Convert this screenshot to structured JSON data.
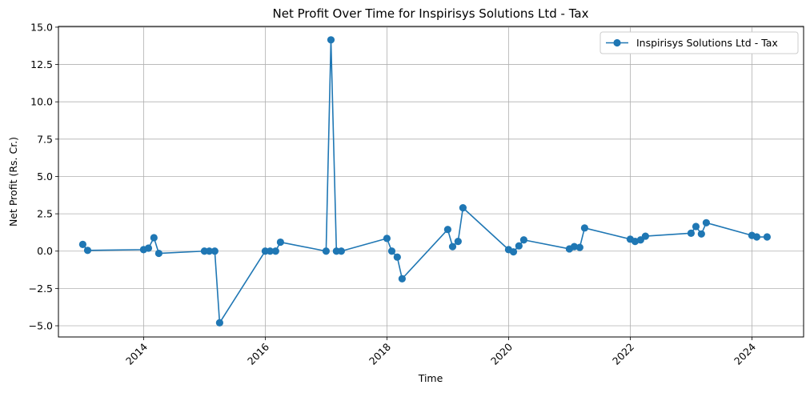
{
  "chart_data": {
    "type": "line",
    "title": "Net Profit Over Time for Inspirisys Solutions Ltd - Tax",
    "xlabel": "Time",
    "ylabel": "Net Profit (Rs. Cr.)",
    "xlim": [
      2012.6,
      2024.85
    ],
    "ylim": [
      -5.75,
      15.05
    ],
    "xticks": [
      2014,
      2016,
      2018,
      2020,
      2022,
      2024
    ],
    "xtick_labels": [
      "2014",
      "2016",
      "2018",
      "2020",
      "2022",
      "2024"
    ],
    "yticks": [
      -5.0,
      -2.5,
      0.0,
      2.5,
      5.0,
      7.5,
      10.0,
      12.5,
      15.0
    ],
    "ytick_labels": [
      "−5.0",
      "−2.5",
      "0.0",
      "2.5",
      "5.0",
      "7.5",
      "10.0",
      "12.5",
      "15.0"
    ],
    "grid": true,
    "legend_position": "top-right",
    "series": [
      {
        "name": "Inspirisys Solutions Ltd - Tax",
        "color": "#1f77b4",
        "marker": "circle",
        "points": [
          {
            "x": 2013.0,
            "y": 0.45
          },
          {
            "x": 2013.08,
            "y": 0.05
          },
          {
            "x": 2014.0,
            "y": 0.1
          },
          {
            "x": 2014.08,
            "y": 0.2
          },
          {
            "x": 2014.17,
            "y": 0.9
          },
          {
            "x": 2014.25,
            "y": -0.15
          },
          {
            "x": 2015.0,
            "y": 0.0
          },
          {
            "x": 2015.08,
            "y": 0.0
          },
          {
            "x": 2015.17,
            "y": 0.0
          },
          {
            "x": 2015.25,
            "y": -4.8
          },
          {
            "x": 2016.0,
            "y": 0.0
          },
          {
            "x": 2016.08,
            "y": 0.0
          },
          {
            "x": 2016.17,
            "y": 0.0
          },
          {
            "x": 2016.25,
            "y": 0.6
          },
          {
            "x": 2017.0,
            "y": 0.0
          },
          {
            "x": 2017.08,
            "y": 14.15
          },
          {
            "x": 2017.17,
            "y": 0.0
          },
          {
            "x": 2017.25,
            "y": 0.0
          },
          {
            "x": 2018.0,
            "y": 0.85
          },
          {
            "x": 2018.08,
            "y": 0.0
          },
          {
            "x": 2018.17,
            "y": -0.4
          },
          {
            "x": 2018.25,
            "y": -1.85
          },
          {
            "x": 2019.0,
            "y": 1.45
          },
          {
            "x": 2019.08,
            "y": 0.3
          },
          {
            "x": 2019.17,
            "y": 0.65
          },
          {
            "x": 2019.25,
            "y": 2.9
          },
          {
            "x": 2020.0,
            "y": 0.1
          },
          {
            "x": 2020.08,
            "y": -0.05
          },
          {
            "x": 2020.17,
            "y": 0.35
          },
          {
            "x": 2020.25,
            "y": 0.75
          },
          {
            "x": 2021.0,
            "y": 0.15
          },
          {
            "x": 2021.08,
            "y": 0.3
          },
          {
            "x": 2021.17,
            "y": 0.25
          },
          {
            "x": 2021.25,
            "y": 1.55
          },
          {
            "x": 2022.0,
            "y": 0.8
          },
          {
            "x": 2022.08,
            "y": 0.65
          },
          {
            "x": 2022.17,
            "y": 0.75
          },
          {
            "x": 2022.25,
            "y": 1.0
          },
          {
            "x": 2023.0,
            "y": 1.2
          },
          {
            "x": 2023.08,
            "y": 1.65
          },
          {
            "x": 2023.17,
            "y": 1.15
          },
          {
            "x": 2023.25,
            "y": 1.9
          },
          {
            "x": 2024.0,
            "y": 1.05
          },
          {
            "x": 2024.08,
            "y": 0.95
          },
          {
            "x": 2024.25,
            "y": 0.95
          }
        ]
      }
    ]
  }
}
